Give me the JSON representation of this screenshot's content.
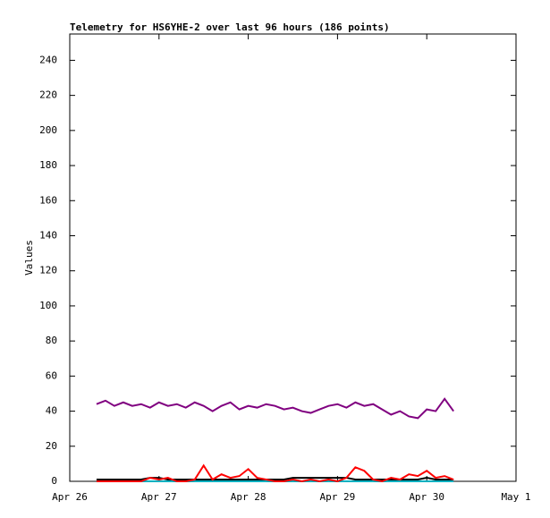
{
  "chart_data": {
    "type": "line",
    "title": "Telemetry for HS6YHE-2 over last 96 hours (186 points)",
    "y_label": "Values",
    "x": [
      0.3,
      0.4,
      0.5,
      0.6,
      0.7,
      0.8,
      0.9,
      1.0,
      1.1,
      1.2,
      1.3,
      1.4,
      1.5,
      1.6,
      1.7,
      1.8,
      1.9,
      2.0,
      2.1,
      2.2,
      2.3,
      2.4,
      2.5,
      2.6,
      2.7,
      2.8,
      2.9,
      3.0,
      3.1,
      3.2,
      3.3,
      3.4,
      3.5,
      3.6,
      3.7,
      3.8,
      3.9,
      4.0,
      4.1,
      4.2,
      4.3
    ],
    "series": [
      {
        "color": "#800080",
        "values": [
          44,
          46,
          43,
          45,
          43,
          44,
          42,
          45,
          43,
          44,
          42,
          45,
          43,
          40,
          43,
          45,
          41,
          43,
          42,
          44,
          43,
          41,
          42,
          40,
          39,
          41,
          43,
          44,
          42,
          45,
          43,
          44,
          41,
          38,
          40,
          37,
          36,
          41,
          40,
          47,
          40
        ]
      },
      {
        "color": "#ff0000",
        "values": [
          0,
          0,
          0,
          0,
          0,
          0,
          2,
          1,
          2,
          0,
          0,
          1,
          9,
          1,
          4,
          2,
          3,
          7,
          2,
          1,
          0,
          0,
          1,
          0,
          1,
          0,
          1,
          0,
          2,
          8,
          6,
          1,
          0,
          2,
          1,
          4,
          3,
          6,
          2,
          3,
          1
        ]
      },
      {
        "color": "#000000",
        "values": [
          1,
          1,
          1,
          1,
          1,
          1,
          2,
          2,
          1,
          1,
          1,
          1,
          1,
          1,
          1,
          1,
          1,
          1,
          1,
          1,
          1,
          1,
          2,
          2,
          2,
          2,
          2,
          2,
          2,
          1,
          1,
          1,
          1,
          1,
          1,
          1,
          1,
          2,
          1,
          1,
          1
        ]
      },
      {
        "color": "#00b0c0",
        "values": [
          0,
          0,
          0,
          0,
          0,
          0,
          0,
          0,
          0,
          0,
          0,
          0,
          0,
          0,
          0,
          0,
          0,
          0,
          0,
          0,
          0,
          0,
          0,
          0,
          0,
          0,
          0,
          0,
          0,
          0,
          0,
          0,
          0,
          0,
          0,
          0,
          0,
          0,
          0,
          0,
          0
        ]
      }
    ],
    "xlim": [
      0,
      5
    ],
    "xticks": [
      {
        "value": 0,
        "label": "Apr 26"
      },
      {
        "value": 1,
        "label": "Apr 27"
      },
      {
        "value": 2,
        "label": "Apr 28"
      },
      {
        "value": 3,
        "label": "Apr 29"
      },
      {
        "value": 4,
        "label": "Apr 30"
      },
      {
        "value": 5,
        "label": "May 1"
      }
    ],
    "ylim": [
      0,
      255
    ],
    "yticks": [
      0,
      20,
      40,
      60,
      80,
      100,
      120,
      140,
      160,
      180,
      200,
      220,
      240
    ]
  }
}
